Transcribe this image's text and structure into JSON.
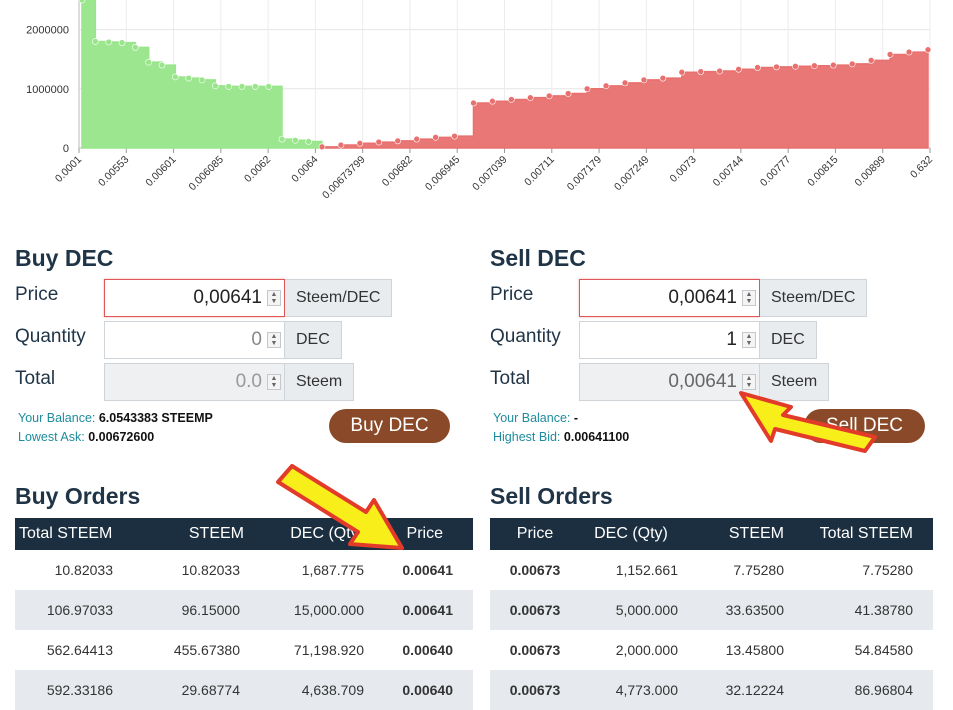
{
  "chart_data": {
    "type": "area",
    "y_ticks": [
      "0",
      "1000000",
      "2000000"
    ],
    "x_tick_labels": [
      "0.0001",
      "0.00553",
      "0.00601",
      "0.006085",
      "0.0062",
      "0.0064",
      "0.00673799",
      "0.00682",
      "0.006945",
      "0.007039",
      "0.00711",
      "0.007179",
      "0.007249",
      "0.0073",
      "0.00744",
      "0.00777",
      "0.00815",
      "0.00899",
      "0.632"
    ],
    "ylim": [
      0,
      2500000
    ],
    "grid": true,
    "series": [
      {
        "side": "bids",
        "color": "#98e58a",
        "values": [
          2500000,
          1800000,
          1790000,
          1780000,
          1700000,
          1450000,
          1400000,
          1200000,
          1180000,
          1150000,
          1050000,
          1040000,
          1040000,
          1040000,
          1040000,
          150000,
          130000,
          110000,
          20000
        ]
      },
      {
        "side": "asks",
        "color": "#e8706e",
        "values": [
          20000,
          50000,
          80000,
          100000,
          120000,
          150000,
          180000,
          200000,
          760000,
          790000,
          820000,
          850000,
          880000,
          920000,
          1000000,
          1050000,
          1100000,
          1150000,
          1180000,
          1280000,
          1290000,
          1300000,
          1330000,
          1360000,
          1370000,
          1380000,
          1390000,
          1400000,
          1420000,
          1480000,
          1580000,
          1620000,
          1660000
        ]
      }
    ]
  },
  "buy": {
    "title": "Buy DEC",
    "price_label": "Price",
    "price_value": "0,00641",
    "price_unit": "Steem/DEC",
    "qty_label": "Quantity",
    "qty_value": "0",
    "qty_unit": "DEC",
    "total_label": "Total",
    "total_value": "0.0",
    "total_unit": "Steem",
    "balance_label": "Your Balance:",
    "balance_value": "6.0543383 STEEMP",
    "ask_label": "Lowest Ask:",
    "ask_value": "0.00672600",
    "button": "Buy DEC"
  },
  "sell": {
    "title": "Sell DEC",
    "price_label": "Price",
    "price_value": "0,00641",
    "price_unit": "Steem/DEC",
    "qty_label": "Quantity",
    "qty_value": "1",
    "qty_unit": "DEC",
    "total_label": "Total",
    "total_value": "0,00641",
    "total_unit": "Steem",
    "balance_label": "Your Balance:",
    "balance_value": "-",
    "bid_label": "Highest Bid:",
    "bid_value": "0.00641100",
    "button": "Sell DEC"
  },
  "buy_orders": {
    "title": "Buy Orders",
    "headers": [
      "Total STEEM",
      "STEEM",
      "DEC (Qty)",
      "Price"
    ],
    "rows": [
      [
        "10.82033",
        "10.82033",
        "1,687.775",
        "0.00641"
      ],
      [
        "106.97033",
        "96.15000",
        "15,000.000",
        "0.00641"
      ],
      [
        "562.64413",
        "455.67380",
        "71,198.920",
        "0.00640"
      ],
      [
        "592.33186",
        "29.68774",
        "4,638.709",
        "0.00640"
      ]
    ]
  },
  "sell_orders": {
    "title": "Sell Orders",
    "headers": [
      "Price",
      "DEC (Qty)",
      "STEEM",
      "Total STEEM"
    ],
    "rows": [
      [
        "0.00673",
        "1,152.661",
        "7.75280",
        "7.75280"
      ],
      [
        "0.00673",
        "5,000.000",
        "33.63500",
        "41.38780"
      ],
      [
        "0.00673",
        "2,000.000",
        "13.45800",
        "54.84580"
      ],
      [
        "0.00673",
        "4,773.000",
        "32.12224",
        "86.96804"
      ]
    ]
  },
  "colors": {
    "arrow_fill": "#f7ee1a",
    "arrow_stroke": "#e33b2a",
    "button": "#8a4a2a",
    "table_header": "#1c2f40"
  }
}
